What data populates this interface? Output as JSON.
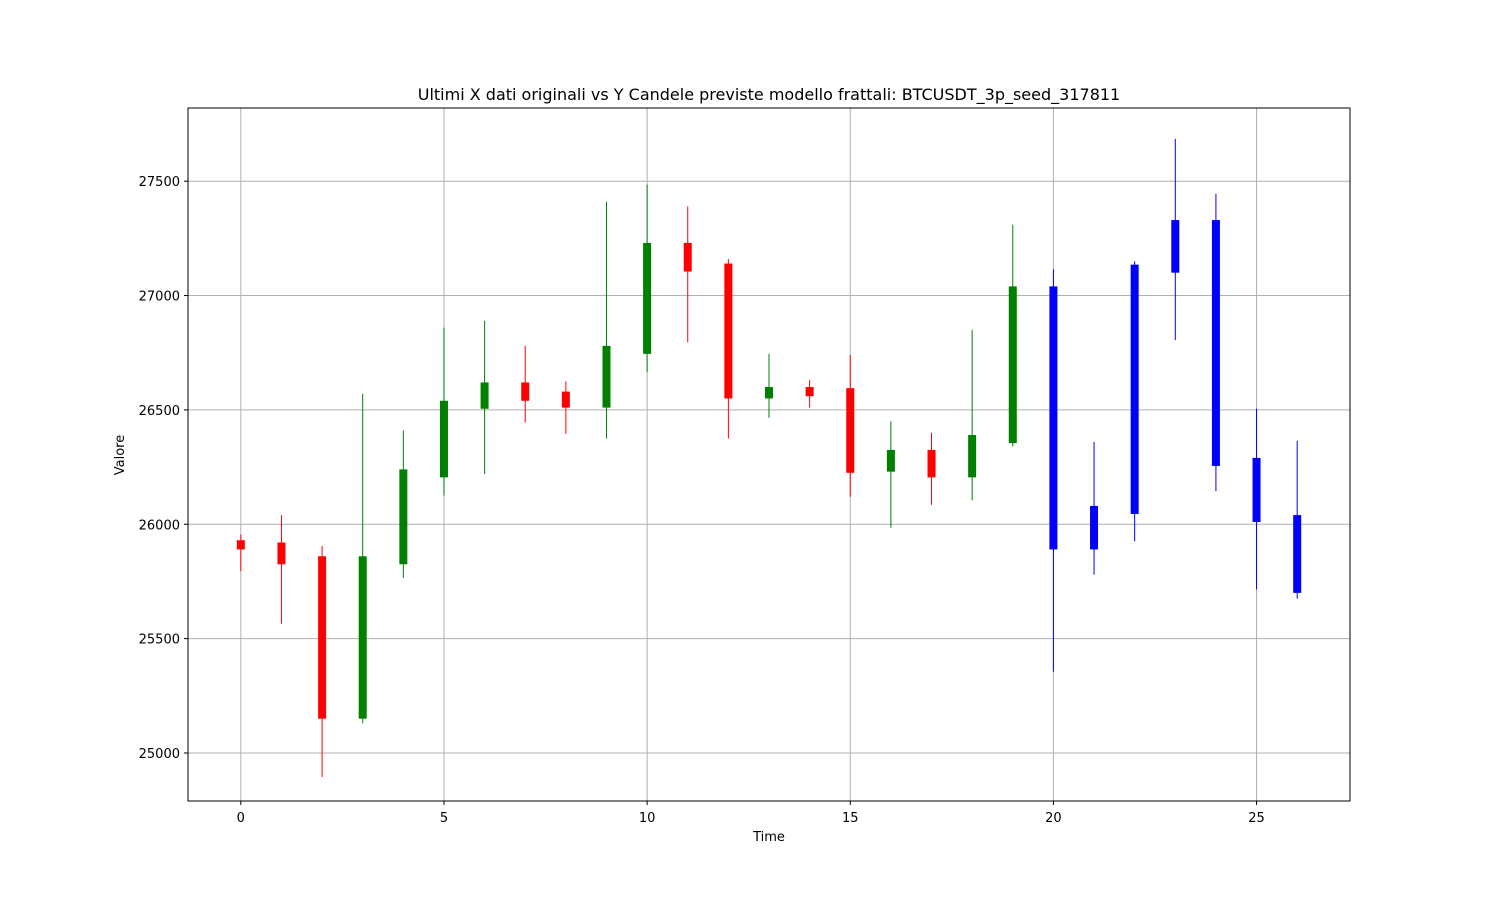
{
  "chart_data": {
    "type": "candlestick",
    "title": "Ultimi X dati originali vs Y Candele previste modello frattali: BTCUSDT_3p_seed_317811",
    "xlabel": "Time",
    "ylabel": "Valore",
    "xlim": [
      -1.3,
      27.3
    ],
    "ylim": [
      24790,
      27820
    ],
    "x_ticks": [
      0,
      5,
      10,
      15,
      20,
      25
    ],
    "y_ticks": [
      25000,
      25500,
      26000,
      26500,
      27000,
      27500
    ],
    "grid": true,
    "colors": {
      "up": "#008000",
      "down": "#ff0000",
      "predicted": "#0000ff",
      "grid": "#b0b0b0"
    },
    "candles": [
      {
        "x": 0,
        "open": 25930,
        "close": 25890,
        "high": 25955,
        "low": 25795,
        "kind": "original"
      },
      {
        "x": 1,
        "open": 25920,
        "close": 25825,
        "high": 26040,
        "low": 25565,
        "kind": "original"
      },
      {
        "x": 2,
        "open": 25860,
        "close": 25150,
        "high": 25905,
        "low": 24895,
        "kind": "original"
      },
      {
        "x": 3,
        "open": 25150,
        "close": 25860,
        "high": 26570,
        "low": 25130,
        "kind": "original"
      },
      {
        "x": 4,
        "open": 25825,
        "close": 26240,
        "high": 26410,
        "low": 25765,
        "kind": "original"
      },
      {
        "x": 5,
        "open": 26205,
        "close": 26540,
        "high": 26860,
        "low": 26125,
        "kind": "original"
      },
      {
        "x": 6,
        "open": 26505,
        "close": 26620,
        "high": 26890,
        "low": 26220,
        "kind": "original"
      },
      {
        "x": 7,
        "open": 26620,
        "close": 26540,
        "high": 26780,
        "low": 26445,
        "kind": "original"
      },
      {
        "x": 8,
        "open": 26580,
        "close": 26510,
        "high": 26625,
        "low": 26395,
        "kind": "original"
      },
      {
        "x": 9,
        "open": 26510,
        "close": 26780,
        "high": 27410,
        "low": 26375,
        "kind": "original"
      },
      {
        "x": 10,
        "open": 26745,
        "close": 27230,
        "high": 27485,
        "low": 26665,
        "kind": "original"
      },
      {
        "x": 11,
        "open": 27230,
        "close": 27105,
        "high": 27390,
        "low": 26795,
        "kind": "original"
      },
      {
        "x": 12,
        "open": 27140,
        "close": 26550,
        "high": 27160,
        "low": 26375,
        "kind": "original"
      },
      {
        "x": 13,
        "open": 26550,
        "close": 26600,
        "high": 26745,
        "low": 26465,
        "kind": "original"
      },
      {
        "x": 14,
        "open": 26600,
        "close": 26560,
        "high": 26630,
        "low": 26510,
        "kind": "original"
      },
      {
        "x": 15,
        "open": 26595,
        "close": 26225,
        "high": 26740,
        "low": 26120,
        "kind": "original"
      },
      {
        "x": 16,
        "open": 26230,
        "close": 26325,
        "high": 26450,
        "low": 25985,
        "kind": "original"
      },
      {
        "x": 17,
        "open": 26325,
        "close": 26205,
        "high": 26400,
        "low": 26085,
        "kind": "original"
      },
      {
        "x": 18,
        "open": 26205,
        "close": 26390,
        "high": 26850,
        "low": 26105,
        "kind": "original"
      },
      {
        "x": 19,
        "open": 26355,
        "close": 27040,
        "high": 27310,
        "low": 26340,
        "kind": "original"
      },
      {
        "x": 20,
        "open": 27040,
        "close": 25890,
        "high": 27115,
        "low": 25355,
        "kind": "predicted"
      },
      {
        "x": 21,
        "open": 25890,
        "close": 26080,
        "high": 26360,
        "low": 25780,
        "kind": "predicted"
      },
      {
        "x": 22,
        "open": 26045,
        "close": 27135,
        "high": 27150,
        "low": 25925,
        "kind": "predicted"
      },
      {
        "x": 23,
        "open": 27100,
        "close": 27330,
        "high": 27685,
        "low": 26805,
        "kind": "predicted"
      },
      {
        "x": 24,
        "open": 27330,
        "close": 26255,
        "high": 27445,
        "low": 26145,
        "kind": "predicted"
      },
      {
        "x": 25,
        "open": 26290,
        "close": 26010,
        "high": 26505,
        "low": 25715,
        "kind": "predicted"
      },
      {
        "x": 26,
        "open": 26040,
        "close": 25700,
        "high": 26365,
        "low": 25675,
        "kind": "predicted"
      }
    ]
  }
}
